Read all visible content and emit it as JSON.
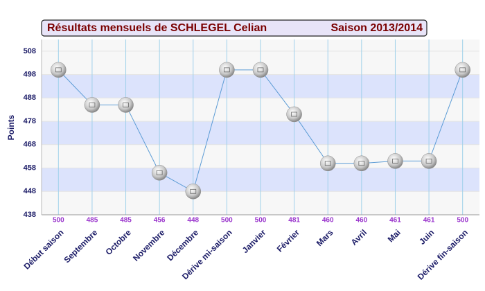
{
  "chart_data": {
    "type": "line",
    "title": "Résultats mensuels de  SCHLEGEL Celian",
    "subtitle": "Saison 2013/2014",
    "y_label": "Points",
    "categories": [
      "Début saison",
      "Septembre",
      "Octobre",
      "Novembre",
      "Décembre",
      "Dérive mi-saison",
      "Janvier",
      "Février",
      "Mars",
      "Avril",
      "Mai",
      "Juin",
      "Dérive fin-saison"
    ],
    "values": [
      500,
      485,
      485,
      456,
      448,
      500,
      500,
      481,
      460,
      460,
      461,
      461,
      500
    ],
    "color": "#5b9bd5",
    "ylim": [
      438,
      513
    ],
    "yticks": [
      438,
      448,
      458,
      468,
      478,
      488,
      498,
      508
    ],
    "grid": true
  }
}
